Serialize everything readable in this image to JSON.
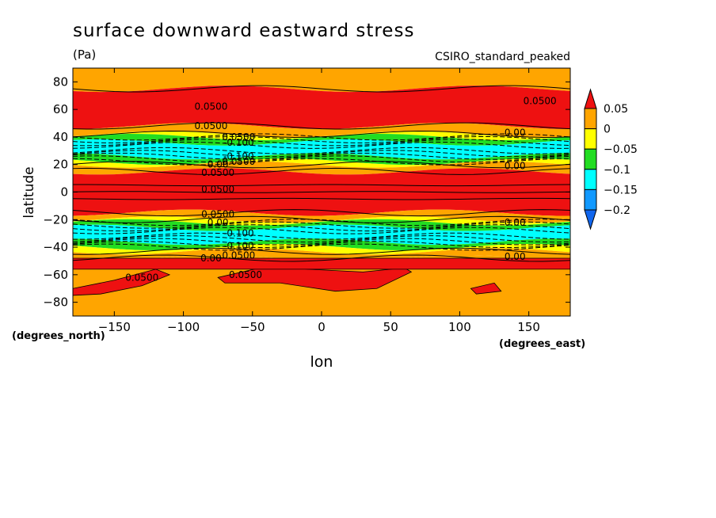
{
  "chart_data": {
    "type": "heatmap",
    "title": "surface downward eastward stress",
    "units": "(Pa)",
    "dataset": "CSIRO_standard_peaked",
    "xlabel": "lon",
    "ylabel": "latitude",
    "x_unit_label": "(degrees_east)",
    "y_unit_label": "(degrees_north)",
    "xlim": [
      -180,
      180
    ],
    "ylim": [
      -90,
      90
    ],
    "x_ticks": [
      -150,
      -100,
      -50,
      0,
      50,
      100,
      150
    ],
    "x_tick_labels": [
      "−150",
      "−100",
      "−50",
      "0",
      "50",
      "100",
      "150"
    ],
    "y_ticks": [
      -80,
      -60,
      -40,
      -20,
      0,
      20,
      40,
      60,
      80
    ],
    "y_tick_labels": [
      "−80",
      "−60",
      "−40",
      "−20",
      "0",
      "20",
      "40",
      "60",
      "80"
    ],
    "colorbar": {
      "levels": [
        0.05,
        0,
        -0.05,
        -0.1,
        -0.15,
        -0.2
      ],
      "labels": [
        "0.05",
        "0",
        "−0.05",
        "−0.1",
        "−0.15",
        "−0.2"
      ],
      "colors": [
        "#ee1111",
        "#ffa500",
        "#ffff00",
        "#22dd22",
        "#00ffff",
        "#1199ff",
        "#1166ee"
      ]
    },
    "zonal_bands": [
      {
        "lat": [
          75,
          90
        ],
        "color": "#ffa500"
      },
      {
        "lat": [
          48,
          75
        ],
        "color": "#ee1111"
      },
      {
        "lat": [
          42,
          48
        ],
        "color": "#ffa500"
      },
      {
        "lat": [
          40,
          42
        ],
        "color": "#ffff00"
      },
      {
        "lat": [
          36,
          40
        ],
        "color": "#22dd22"
      },
      {
        "lat": [
          26,
          36
        ],
        "color": "#00ffff"
      },
      {
        "lat": [
          22,
          26
        ],
        "color": "#22dd22"
      },
      {
        "lat": [
          20,
          22
        ],
        "color": "#ffff00"
      },
      {
        "lat": [
          15,
          20
        ],
        "color": "#ffa500"
      },
      {
        "lat": [
          -15,
          15
        ],
        "color": "#ee1111"
      },
      {
        "lat": [
          -20,
          -15
        ],
        "color": "#ffa500"
      },
      {
        "lat": [
          -22,
          -20
        ],
        "color": "#ffff00"
      },
      {
        "lat": [
          -26,
          -22
        ],
        "color": "#22dd22"
      },
      {
        "lat": [
          -36,
          -26
        ],
        "color": "#00ffff"
      },
      {
        "lat": [
          -40,
          -36
        ],
        "color": "#22dd22"
      },
      {
        "lat": [
          -43,
          -40
        ],
        "color": "#ffff00"
      },
      {
        "lat": [
          -48,
          -43
        ],
        "color": "#ffa500"
      },
      {
        "lat": [
          -90,
          -48
        ],
        "color": "#ffa500"
      }
    ],
    "contour_labels": [
      {
        "text": "0.0500",
        "lon": -80,
        "lat": 62
      },
      {
        "text": "0.0500",
        "lon": 158,
        "lat": 66
      },
      {
        "text": "0.0500",
        "lon": -80,
        "lat": 48
      },
      {
        "text": "0.00",
        "lon": 140,
        "lat": 43
      },
      {
        "text": "0.0500",
        "lon": -60,
        "lat": 40
      },
      {
        "text": "-0.100",
        "lon": -60,
        "lat": 36
      },
      {
        "text": "-0.100",
        "lon": -60,
        "lat": 26
      },
      {
        "text": "0.0500",
        "lon": -60,
        "lat": 22
      },
      {
        "text": "0.00",
        "lon": -75,
        "lat": 20
      },
      {
        "text": "0.00",
        "lon": 140,
        "lat": 19
      },
      {
        "text": "0.0500",
        "lon": -75,
        "lat": 14
      },
      {
        "text": "0.0500",
        "lon": -75,
        "lat": 2
      },
      {
        "text": "0.0500",
        "lon": -75,
        "lat": -16
      },
      {
        "text": "0.00",
        "lon": -75,
        "lat": -22
      },
      {
        "text": "0.00",
        "lon": 140,
        "lat": -22
      },
      {
        "text": "-0.100",
        "lon": -60,
        "lat": -30
      },
      {
        "text": "-0.100",
        "lon": -60,
        "lat": -39
      },
      {
        "text": "0.0500",
        "lon": -60,
        "lat": -46
      },
      {
        "text": "0.00",
        "lon": -80,
        "lat": -48
      },
      {
        "text": "0.00",
        "lon": 140,
        "lat": -47
      },
      {
        "text": "0.0500",
        "lon": -130,
        "lat": -62
      },
      {
        "text": "0.0500",
        "lon": -55,
        "lat": -60
      }
    ]
  }
}
